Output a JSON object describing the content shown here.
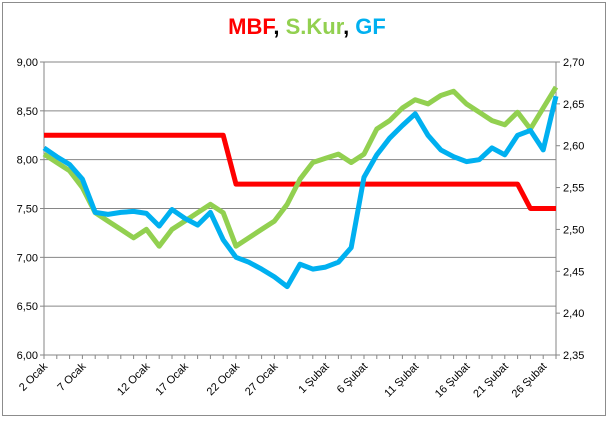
{
  "chart_data": {
    "type": "line",
    "title_parts": [
      {
        "text": "MBF",
        "color": "#ff0000"
      },
      {
        "text": ", ",
        "color": "#000000"
      },
      {
        "text": "S.Kur",
        "color": "#92d050"
      },
      {
        "text": ", ",
        "color": "#000000"
      },
      {
        "text": "GF",
        "color": "#00b0f0"
      }
    ],
    "x_count": 41,
    "x_tick_labels": [
      {
        "i": 0,
        "label": "2 Ocak"
      },
      {
        "i": 3,
        "label": "7 Ocak"
      },
      {
        "i": 8,
        "label": "12 Ocak"
      },
      {
        "i": 11,
        "label": "17 Ocak"
      },
      {
        "i": 15,
        "label": "22 Ocak"
      },
      {
        "i": 18,
        "label": "27 Ocak"
      },
      {
        "i": 22,
        "label": "1 Şubat"
      },
      {
        "i": 25,
        "label": "6 Şubat"
      },
      {
        "i": 29,
        "label": "11 Şubat"
      },
      {
        "i": 33,
        "label": "16 Şubat"
      },
      {
        "i": 36,
        "label": "21 Şubat"
      },
      {
        "i": 39,
        "label": "26 Şubat"
      }
    ],
    "y_left": {
      "min": 6.0,
      "max": 9.0,
      "ticks": [
        "6,00",
        "6,50",
        "7,00",
        "7,50",
        "8,00",
        "8,50",
        "9,00"
      ]
    },
    "y_right": {
      "min": 2.35,
      "max": 2.7,
      "ticks": [
        "2,35",
        "2,40",
        "2,45",
        "2,50",
        "2,55",
        "2,60",
        "2,65",
        "2,70"
      ]
    },
    "gridlines": "horizontal",
    "legend": "none",
    "series": [
      {
        "name": "MBF",
        "axis": "left",
        "color": "#ff0000",
        "values": [
          8.25,
          8.25,
          8.25,
          8.25,
          8.25,
          8.25,
          8.25,
          8.25,
          8.25,
          8.25,
          8.25,
          8.25,
          8.25,
          8.25,
          8.25,
          7.75,
          7.75,
          7.75,
          7.75,
          7.75,
          7.75,
          7.75,
          7.75,
          7.75,
          7.75,
          7.75,
          7.75,
          7.75,
          7.75,
          7.75,
          7.75,
          7.75,
          7.75,
          7.75,
          7.75,
          7.75,
          7.75,
          7.75,
          7.5,
          7.5,
          7.5
        ]
      },
      {
        "name": "S.Kur",
        "axis": "right",
        "color": "#92d050",
        "values": [
          2.59,
          2.58,
          2.57,
          2.55,
          2.52,
          2.51,
          2.5,
          2.49,
          2.5,
          2.48,
          2.5,
          2.51,
          2.52,
          2.53,
          2.52,
          2.48,
          2.49,
          2.5,
          2.51,
          2.53,
          2.56,
          2.58,
          2.585,
          2.59,
          2.58,
          2.59,
          2.62,
          2.63,
          2.645,
          2.655,
          2.65,
          2.66,
          2.665,
          2.65,
          2.64,
          2.63,
          2.625,
          2.64,
          2.62,
          2.645,
          2.67
        ]
      },
      {
        "name": "GF",
        "axis": "left",
        "color": "#00b0f0",
        "values": [
          8.12,
          8.03,
          7.95,
          7.8,
          7.46,
          7.44,
          7.46,
          7.47,
          7.45,
          7.32,
          7.49,
          7.4,
          7.33,
          7.46,
          7.18,
          7.0,
          6.95,
          6.88,
          6.8,
          6.7,
          6.93,
          6.88,
          6.9,
          6.95,
          7.1,
          7.82,
          8.05,
          8.22,
          8.35,
          8.47,
          8.25,
          8.1,
          8.03,
          7.98,
          8.0,
          8.12,
          8.05,
          8.25,
          8.3,
          8.1,
          8.65
        ]
      }
    ]
  }
}
